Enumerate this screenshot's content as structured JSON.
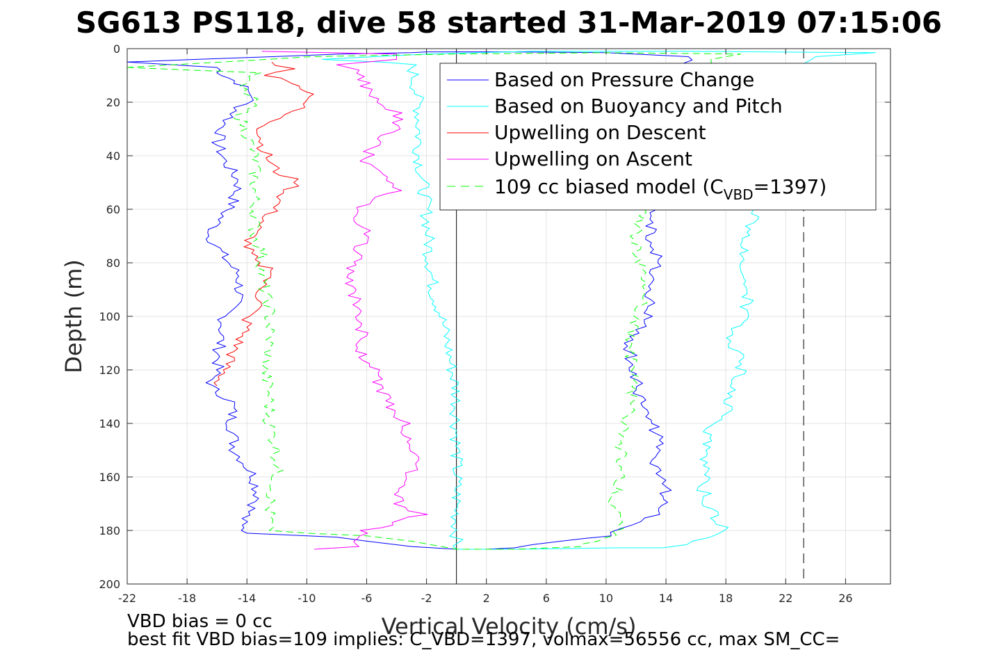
{
  "chart_data": {
    "type": "line",
    "title": "SG613 PS118, dive 58 started 31-Mar-2019 07:15:06",
    "xlabel": "Vertical Velocity (cm/s)",
    "ylabel": "Depth (m)",
    "xlim": [
      -22,
      29
    ],
    "ylim": [
      0,
      200
    ],
    "y_reversed": true,
    "grid": true,
    "x_ticks": [
      -22,
      -18,
      -14,
      -10,
      -6,
      -2,
      2,
      6,
      10,
      14,
      18,
      22,
      26
    ],
    "x_tick_labels": [
      "-22",
      "-18",
      "-14",
      "-10",
      "-6",
      "-2",
      "2",
      "6",
      "10",
      "14",
      "18",
      "22",
      "26"
    ],
    "y_ticks": [
      0,
      20,
      40,
      60,
      80,
      100,
      120,
      140,
      160,
      180,
      200
    ],
    "y_tick_labels": [
      "0",
      "20",
      "40",
      "60",
      "80",
      "100",
      "120",
      "140",
      "160",
      "180",
      "200"
    ],
    "legend_position": "top-right",
    "reference_lines": [
      {
        "x": 0,
        "style": "solid",
        "color": "#000000"
      },
      {
        "x": 23.2,
        "style": "dashed",
        "color": "#000000"
      }
    ],
    "series": [
      {
        "name": "Based on Pressure Change",
        "color": "#0000ff",
        "dash": "solid",
        "points": [
          [
            -22,
            5
          ],
          [
            -16,
            7
          ],
          [
            -15.5,
            10
          ],
          [
            -14.5,
            13
          ],
          [
            -13.5,
            18
          ],
          [
            -14.5,
            22
          ],
          [
            -15.5,
            28
          ],
          [
            -16,
            35
          ],
          [
            -15.5,
            42
          ],
          [
            -14.5,
            50
          ],
          [
            -15,
            58
          ],
          [
            -16,
            65
          ],
          [
            -16.5,
            70
          ],
          [
            -15.5,
            78
          ],
          [
            -14.5,
            85
          ],
          [
            -14.5,
            92
          ],
          [
            -15.5,
            100
          ],
          [
            -15.8,
            110
          ],
          [
            -16,
            120
          ],
          [
            -16.5,
            126
          ],
          [
            -15,
            132
          ],
          [
            -15,
            140
          ],
          [
            -14.8,
            150
          ],
          [
            -13.5,
            160
          ],
          [
            -13.2,
            168
          ],
          [
            -14.5,
            178
          ],
          [
            -14,
            181
          ],
          [
            -8,
            182.5
          ],
          [
            -6,
            184
          ],
          [
            -3,
            186
          ],
          [
            0,
            187
          ],
          [
            2,
            187
          ],
          [
            4,
            186.5
          ],
          [
            7,
            184
          ],
          [
            10,
            182
          ],
          [
            12,
            178
          ],
          [
            13.5,
            174
          ],
          [
            14,
            165
          ],
          [
            13,
            155
          ],
          [
            13.5,
            145
          ],
          [
            12.5,
            135
          ],
          [
            12,
            125
          ],
          [
            11.5,
            110
          ],
          [
            12.8,
            100
          ],
          [
            13,
            90
          ],
          [
            13.5,
            80
          ],
          [
            13,
            70
          ],
          [
            13.2,
            60
          ],
          [
            13,
            50
          ],
          [
            14,
            40
          ],
          [
            14.5,
            30
          ],
          [
            15,
            20
          ],
          [
            15,
            8
          ],
          [
            15.5,
            3
          ],
          [
            10,
            1.5
          ],
          [
            3,
            1.2
          ],
          [
            -2,
            1.2
          ],
          [
            -3,
            1.5
          ],
          [
            -8,
            2
          ],
          [
            -22,
            5
          ]
        ]
      },
      {
        "name": "Based on Buoyancy and Pitch",
        "color": "#00ffff",
        "dash": "solid",
        "points": [
          [
            -9,
            4
          ],
          [
            -5,
            5
          ],
          [
            -3,
            6
          ],
          [
            -2.8,
            12
          ],
          [
            -2.5,
            22
          ],
          [
            -2.5,
            40
          ],
          [
            -2,
            60
          ],
          [
            -1.8,
            78
          ],
          [
            -1.5,
            92
          ],
          [
            -1,
            100
          ],
          [
            -0.6,
            110
          ],
          [
            -0.3,
            120
          ],
          [
            0,
            128
          ],
          [
            0,
            187
          ],
          [
            4,
            187
          ],
          [
            10.5,
            186.5
          ],
          [
            14,
            186.5
          ],
          [
            16,
            184
          ],
          [
            18,
            180
          ],
          [
            17,
            172
          ],
          [
            16.5,
            165
          ],
          [
            17,
            158
          ],
          [
            16.5,
            150
          ],
          [
            17,
            142
          ],
          [
            18,
            135
          ],
          [
            18.5,
            125
          ],
          [
            19.2,
            118
          ],
          [
            18,
            108
          ],
          [
            19.3,
            100
          ],
          [
            19.5,
            88
          ],
          [
            19.2,
            80
          ],
          [
            19.4,
            72
          ],
          [
            19.8,
            64
          ],
          [
            19.8,
            58
          ],
          [
            20,
            45
          ],
          [
            20.5,
            35
          ],
          [
            21,
            28
          ],
          [
            21.5,
            18
          ],
          [
            22,
            12
          ],
          [
            22.5,
            8
          ],
          [
            24,
            3
          ],
          [
            28,
            1.5
          ],
          [
            15,
            1
          ],
          [
            5,
            1
          ],
          [
            -2,
            2
          ],
          [
            -9,
            4
          ]
        ]
      },
      {
        "name": "Upwelling on Descent",
        "color": "#ff0000",
        "dash": "solid",
        "points": [
          [
            -12.5,
            5
          ],
          [
            -11,
            7.5
          ],
          [
            -12.5,
            10
          ],
          [
            -11,
            13
          ],
          [
            -10,
            15
          ],
          [
            -9.5,
            18
          ],
          [
            -10.5,
            22
          ],
          [
            -12,
            26
          ],
          [
            -13,
            30
          ],
          [
            -13,
            36
          ],
          [
            -12.5,
            42
          ],
          [
            -12,
            46
          ],
          [
            -10.5,
            50
          ],
          [
            -11.5,
            54
          ],
          [
            -12,
            58
          ],
          [
            -12.5,
            62
          ],
          [
            -13.5,
            68
          ],
          [
            -14,
            74
          ],
          [
            -13.5,
            80
          ],
          [
            -12,
            83
          ],
          [
            -13,
            88
          ],
          [
            -13.2,
            96
          ],
          [
            -14,
            100
          ],
          [
            -14,
            104
          ],
          [
            -14.8,
            112
          ],
          [
            -15.5,
            120
          ],
          [
            -16,
            126
          ]
        ]
      },
      {
        "name": "Upwelling on Ascent",
        "color": "#ff00ff",
        "dash": "solid",
        "points": [
          [
            -9.5,
            187
          ],
          [
            -6.5,
            186
          ],
          [
            -7,
            183
          ],
          [
            -6,
            180
          ],
          [
            -4,
            177
          ],
          [
            -2.2,
            174
          ],
          [
            -4,
            170
          ],
          [
            -3.5,
            162
          ],
          [
            -2.5,
            155
          ],
          [
            -3,
            148
          ],
          [
            -3.5,
            140
          ],
          [
            -4.5,
            134
          ],
          [
            -5,
            128
          ],
          [
            -5.5,
            120
          ],
          [
            -6.5,
            113
          ],
          [
            -6.3,
            105
          ],
          [
            -6.5,
            98
          ],
          [
            -7,
            90
          ],
          [
            -7,
            82
          ],
          [
            -6.5,
            75
          ],
          [
            -6,
            68
          ],
          [
            -7,
            62
          ],
          [
            -6,
            58
          ],
          [
            -4,
            53
          ],
          [
            -5,
            48
          ],
          [
            -6.2,
            42
          ],
          [
            -5.5,
            36
          ],
          [
            -4,
            30
          ],
          [
            -4,
            24
          ],
          [
            -5,
            20
          ],
          [
            -6,
            14
          ],
          [
            -6.5,
            8
          ],
          [
            -8,
            6
          ],
          [
            -4,
            4
          ],
          [
            -4,
            2
          ],
          [
            -13,
            1
          ]
        ]
      },
      {
        "name": "109 cc biased model (C_VBD=1397)",
        "color": "#00ff00",
        "dash": "dashed",
        "points": [
          [
            -22,
            7
          ],
          [
            -13.5,
            9
          ],
          [
            -14.5,
            14
          ],
          [
            -13.5,
            20
          ],
          [
            -14.5,
            25
          ],
          [
            -14,
            32
          ],
          [
            -13.5,
            40
          ],
          [
            -13.5,
            48
          ],
          [
            -13.5,
            55
          ],
          [
            -13.5,
            62
          ],
          [
            -13.5,
            70
          ],
          [
            -13,
            76
          ],
          [
            -13,
            84
          ],
          [
            -12.8,
            92
          ],
          [
            -12.5,
            98
          ],
          [
            -12.5,
            110
          ],
          [
            -12.8,
            120
          ],
          [
            -12.5,
            130
          ],
          [
            -12.5,
            140
          ],
          [
            -12,
            150
          ],
          [
            -12,
            160
          ],
          [
            -12.5,
            170
          ],
          [
            -12.5,
            176
          ],
          [
            -12.5,
            180
          ],
          [
            -10,
            181
          ],
          [
            -6,
            182
          ],
          [
            -3,
            184
          ],
          [
            -1,
            186
          ],
          [
            0,
            187
          ],
          [
            4,
            187
          ],
          [
            8,
            186
          ],
          [
            10,
            183
          ],
          [
            11,
            178
          ],
          [
            10.5,
            170
          ],
          [
            11,
            160
          ],
          [
            11,
            150
          ],
          [
            11.2,
            140
          ],
          [
            11.8,
            130
          ],
          [
            11.8,
            120
          ],
          [
            11.5,
            110
          ],
          [
            12.2,
            100
          ],
          [
            12.4,
            90
          ],
          [
            12.2,
            80
          ],
          [
            12,
            70
          ],
          [
            12.5,
            60
          ],
          [
            12.5,
            50
          ],
          [
            13,
            40
          ],
          [
            13.5,
            30
          ],
          [
            14,
            20
          ],
          [
            15,
            10
          ],
          [
            17,
            4
          ],
          [
            19,
            2
          ],
          [
            10,
            1.5
          ],
          [
            0,
            2
          ],
          [
            -10,
            3
          ],
          [
            -22,
            7
          ]
        ]
      }
    ]
  },
  "annotations": {
    "note1": "VBD bias = 0 cc",
    "note2": "best fit VBD bias=109 implies: C_VBD=1397, volmax=56556 cc, max SM_CC="
  },
  "legend_labels": {
    "series0": "Based on Pressure Change",
    "series1": "Based on Buoyancy and Pitch",
    "series2": "Upwelling on Descent",
    "series3": "Upwelling on Ascent",
    "series4_prefix": "109 cc biased model (C",
    "series4_sub": "VBD",
    "series4_suffix": "=1397)"
  }
}
